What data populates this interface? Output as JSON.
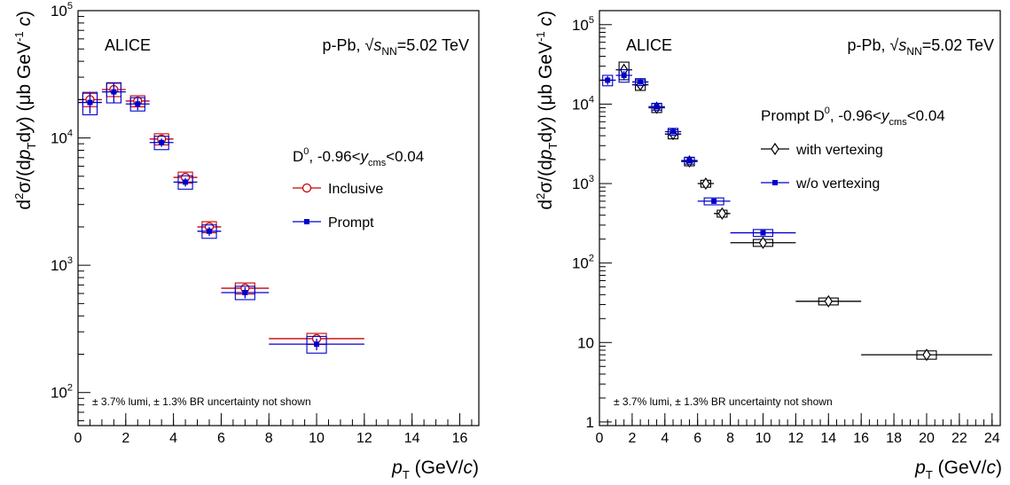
{
  "chart_data": [
    {
      "type": "scatter",
      "experiment": "ALICE",
      "system": "p-Pb, ",
      "energy_label": "=5.02 TeV",
      "energy_symbol": "s",
      "energy_sub": "NN",
      "legend_header": "D",
      "legend_header_sup": "0",
      "legend_header_rest": ", -0.96<",
      "legend_header_var": "y",
      "legend_header_sub": "cms",
      "legend_header_tail": "<0.04",
      "footnote": "± 3.7% lumi, ± 1.3% BR uncertainty not shown",
      "xlabel": "(GeV/c)",
      "xlabel_var": "p",
      "xlabel_sub": "T",
      "ylabel": "d²σ/(dp_T dy) (μb GeV⁻¹ c)",
      "yscale": "log",
      "xlim": [
        0,
        16.8
      ],
      "ylim": [
        55,
        100000
      ],
      "xticks": [
        0,
        2,
        4,
        6,
        8,
        10,
        12,
        14,
        16
      ],
      "yticks": [
        {
          "v": 100,
          "label": "10",
          "sup": "2"
        },
        {
          "v": 1000,
          "label": "10",
          "sup": "3"
        },
        {
          "v": 10000,
          "label": "10",
          "sup": "4"
        },
        {
          "v": 100000,
          "label": "10",
          "sup": "5"
        }
      ],
      "series": [
        {
          "name": "Inclusive",
          "color": "#cc0000",
          "marker": "open-circle",
          "points": [
            {
              "x": 0.5,
              "xlo": 0,
              "xhi": 1,
              "y": 20000,
              "ylo": 17500,
              "yhi": 23000,
              "sys": 0.12
            },
            {
              "x": 1.5,
              "xlo": 1,
              "xhi": 2,
              "y": 24000,
              "ylo": 21000,
              "yhi": 27000,
              "sys": 0.12
            },
            {
              "x": 2.5,
              "xlo": 2,
              "xhi": 3,
              "y": 19500,
              "ylo": 18000,
              "yhi": 21000,
              "sys": 0.1
            },
            {
              "x": 3.5,
              "xlo": 3,
              "xhi": 4,
              "y": 9800,
              "ylo": 9300,
              "yhi": 10300,
              "sys": 0.1
            },
            {
              "x": 4.5,
              "xlo": 4,
              "xhi": 5,
              "y": 4900,
              "ylo": 4650,
              "yhi": 5150,
              "sys": 0.1
            },
            {
              "x": 5.5,
              "xlo": 5,
              "xhi": 6,
              "y": 2000,
              "ylo": 1900,
              "yhi": 2100,
              "sys": 0.1
            },
            {
              "x": 7,
              "xlo": 6,
              "xhi": 8,
              "y": 660,
              "ylo": 620,
              "yhi": 700,
              "sys": 0.1
            },
            {
              "x": 10,
              "xlo": 8,
              "xhi": 12,
              "y": 265,
              "ylo": 245,
              "yhi": 285,
              "sys": 0.1
            }
          ]
        },
        {
          "name": "Prompt",
          "color": "#0000cc",
          "marker": "filled-square",
          "points": [
            {
              "x": 0.5,
              "xlo": 0,
              "xhi": 1,
              "y": 19000,
              "ylo": 15500,
              "yhi": 22500,
              "sys": 0.2
            },
            {
              "x": 1.5,
              "xlo": 1,
              "xhi": 2,
              "y": 23000,
              "ylo": 19000,
              "yhi": 27000,
              "sys": 0.18
            },
            {
              "x": 2.5,
              "xlo": 2,
              "xhi": 3,
              "y": 18500,
              "ylo": 16500,
              "yhi": 20500,
              "sys": 0.12
            },
            {
              "x": 3.5,
              "xlo": 3,
              "xhi": 4,
              "y": 9200,
              "ylo": 8500,
              "yhi": 9900,
              "sys": 0.12
            },
            {
              "x": 4.5,
              "xlo": 4,
              "xhi": 5,
              "y": 4500,
              "ylo": 4150,
              "yhi": 4850,
              "sys": 0.12
            },
            {
              "x": 5.5,
              "xlo": 5,
              "xhi": 6,
              "y": 1850,
              "ylo": 1700,
              "yhi": 2000,
              "sys": 0.12
            },
            {
              "x": 7,
              "xlo": 6,
              "xhi": 8,
              "y": 610,
              "ylo": 550,
              "yhi": 670,
              "sys": 0.12
            },
            {
              "x": 10,
              "xlo": 8,
              "xhi": 12,
              "y": 240,
              "ylo": 215,
              "yhi": 265,
              "sys": 0.15
            }
          ]
        }
      ]
    },
    {
      "type": "scatter",
      "experiment": "ALICE",
      "system": "p-Pb, ",
      "energy_label": "=5.02 TeV",
      "energy_symbol": "s",
      "energy_sub": "NN",
      "legend_header": "Prompt D",
      "legend_header_sup": "0",
      "legend_header_rest": ", -0.96<",
      "legend_header_var": "y",
      "legend_header_sub": "cms",
      "legend_header_tail": "<0.04",
      "footnote": "± 3.7% lumi, ± 1.3% BR uncertainty not shown",
      "xlabel": "(GeV/c)",
      "xlabel_var": "p",
      "xlabel_sub": "T",
      "ylabel": "d²σ/(dp_T dy) (μb GeV⁻¹ c)",
      "yscale": "log",
      "xlim": [
        0,
        24.5
      ],
      "ylim": [
        0.9,
        150000
      ],
      "xticks": [
        0,
        2,
        4,
        6,
        8,
        10,
        12,
        14,
        16,
        18,
        20,
        22,
        24
      ],
      "yticks": [
        {
          "v": 1,
          "label": "1",
          "sup": ""
        },
        {
          "v": 10,
          "label": "10",
          "sup": ""
        },
        {
          "v": 100,
          "label": "10",
          "sup": "2"
        },
        {
          "v": 1000,
          "label": "10",
          "sup": "3"
        },
        {
          "v": 10000,
          "label": "10",
          "sup": "4"
        },
        {
          "v": 100000,
          "label": "10",
          "sup": "5"
        }
      ],
      "series": [
        {
          "name": "with vertexing",
          "color": "#000000",
          "marker": "open-diamond",
          "points": [
            {
              "x": 1.5,
              "xlo": 1,
              "xhi": 2,
              "y": 27000,
              "ylo": 24000,
              "yhi": 30000,
              "sys": 0.25
            },
            {
              "x": 2.5,
              "xlo": 2,
              "xhi": 3,
              "y": 17500,
              "ylo": 16500,
              "yhi": 18500,
              "sys": 0.15
            },
            {
              "x": 3.5,
              "xlo": 3,
              "xhi": 4,
              "y": 9000,
              "ylo": 8600,
              "yhi": 9400,
              "sys": 0.13
            },
            {
              "x": 4.5,
              "xlo": 4,
              "xhi": 5,
              "y": 4200,
              "ylo": 4000,
              "yhi": 4400,
              "sys": 0.13
            },
            {
              "x": 5.5,
              "xlo": 5,
              "xhi": 6,
              "y": 1900,
              "ylo": 1800,
              "yhi": 2000,
              "sys": 0.12
            },
            {
              "x": 6.5,
              "xlo": 6,
              "xhi": 7,
              "y": 1000,
              "ylo": 950,
              "yhi": 1050,
              "sys": 0.1
            },
            {
              "x": 7.5,
              "xlo": 7,
              "xhi": 8,
              "y": 420,
              "ylo": 395,
              "yhi": 445,
              "sys": 0.1
            },
            {
              "x": 10,
              "xlo": 8,
              "xhi": 12,
              "y": 180,
              "ylo": 170,
              "yhi": 190,
              "sys": 0.1
            },
            {
              "x": 14,
              "xlo": 12,
              "xhi": 16,
              "y": 33,
              "ylo": 31,
              "yhi": 35,
              "sys": 0.1
            },
            {
              "x": 20,
              "xlo": 16,
              "xhi": 24,
              "y": 7,
              "ylo": 6.5,
              "yhi": 7.5,
              "sys": 0.12
            }
          ]
        },
        {
          "name": "w/o vertexing",
          "color": "#0000cc",
          "marker": "filled-square",
          "points": [
            {
              "x": 0.5,
              "xlo": 0,
              "xhi": 1,
              "y": 20000,
              "ylo": 17500,
              "yhi": 22500,
              "sys": 0.15
            },
            {
              "x": 1.5,
              "xlo": 1,
              "xhi": 2,
              "y": 23000,
              "ylo": 20000,
              "yhi": 26000,
              "sys": 0.18
            },
            {
              "x": 2.5,
              "xlo": 2,
              "xhi": 3,
              "y": 19000,
              "ylo": 18000,
              "yhi": 20000,
              "sys": 0.1
            },
            {
              "x": 3.5,
              "xlo": 3,
              "xhi": 4,
              "y": 9300,
              "ylo": 8900,
              "yhi": 9700,
              "sys": 0.1
            },
            {
              "x": 4.5,
              "xlo": 4,
              "xhi": 5,
              "y": 4500,
              "ylo": 4300,
              "yhi": 4700,
              "sys": 0.1
            },
            {
              "x": 5.5,
              "xlo": 5,
              "xhi": 6,
              "y": 1950,
              "ylo": 1850,
              "yhi": 2050,
              "sys": 0.1
            },
            {
              "x": 7,
              "xlo": 6,
              "xhi": 8,
              "y": 600,
              "ylo": 560,
              "yhi": 640,
              "sys": 0.1
            },
            {
              "x": 10,
              "xlo": 8,
              "xhi": 12,
              "y": 240,
              "ylo": 225,
              "yhi": 255,
              "sys": 0.1
            }
          ]
        }
      ]
    }
  ]
}
